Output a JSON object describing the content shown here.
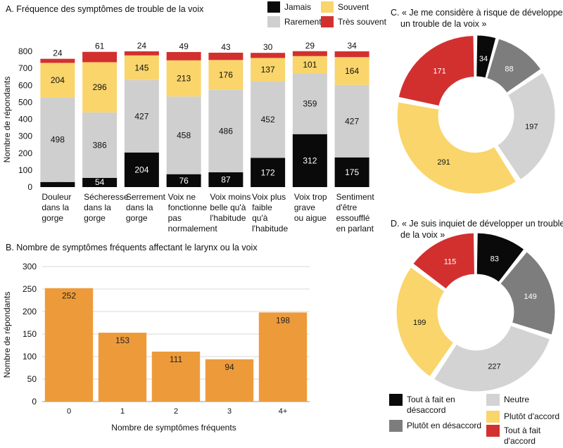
{
  "colors": {
    "jamais": "#0a0a0a",
    "rarement": "#cfcfcf",
    "souvent": "#f9d56b",
    "tres_souvent": "#d2302f",
    "orange": "#ed9b3a",
    "disagree_somewhat": "#7d7d7d",
    "neutral": "#d3d3d3"
  },
  "chart_data": [
    {
      "id": "A",
      "type": "bar",
      "stacked": true,
      "title": "A. Fréquence des symptômes de trouble de la voix",
      "ylabel": "Nombre de répondants",
      "ylim": [
        0,
        800
      ],
      "yticks": [
        0,
        100,
        200,
        300,
        400,
        500,
        600,
        700,
        800
      ],
      "legend_placement": "top-right",
      "categories": [
        "Douleur dans la gorge",
        "Sécheresse dans la gorge",
        "Serrement dans la gorge",
        "Voix ne fonctionne pas normalement",
        "Voix moins belle qu'à l'habitude",
        "Voix plus faible qu'à l'habitude",
        "Voix trop grave ou aigue",
        "Sentiment d'être essoufflé en parlant"
      ],
      "category_lines": [
        [
          "Douleur",
          "dans la",
          "gorge"
        ],
        [
          "Sécheresse",
          "dans la",
          "gorge"
        ],
        [
          "Serrement",
          "dans la",
          "gorge"
        ],
        [
          "Voix ne",
          "fonctionne",
          "pas",
          "normalement"
        ],
        [
          "Voix moins",
          "belle qu'à",
          "l'habitude"
        ],
        [
          "Voix plus",
          "faible",
          "qu'à",
          "l'habitude"
        ],
        [
          "Voix trop",
          "grave",
          "ou aigue"
        ],
        [
          "Sentiment",
          "d'être",
          "essoufflé",
          "en parlant"
        ]
      ],
      "series": [
        {
          "name": "Jamais",
          "values": [
            30,
            54,
            204,
            76,
            87,
            172,
            312,
            175
          ]
        },
        {
          "name": "Rarement",
          "values": [
            498,
            386,
            427,
            458,
            486,
            452,
            359,
            427
          ]
        },
        {
          "name": "Souvent",
          "values": [
            204,
            296,
            145,
            213,
            176,
            137,
            101,
            164
          ]
        },
        {
          "name": "Très souvent",
          "values": [
            24,
            61,
            24,
            49,
            43,
            30,
            29,
            34
          ]
        }
      ]
    },
    {
      "id": "B",
      "type": "bar",
      "title": "B. Nombre de symptômes fréquents affectant le larynx ou la voix",
      "xlabel": "Nombre de symptômes fréquents",
      "ylabel": "Nombre de répondants",
      "ylim": [
        0,
        300
      ],
      "yticks": [
        0,
        50,
        100,
        150,
        200,
        250,
        300
      ],
      "grid": true,
      "categories": [
        "0",
        "1",
        "2",
        "3",
        "4+"
      ],
      "values": [
        252,
        153,
        111,
        94,
        198
      ]
    },
    {
      "id": "C",
      "type": "pie",
      "donut": true,
      "title_lines": [
        "C. « Je me considère à risque de développer",
        "un trouble de la voix »"
      ],
      "labels": [
        "Tout à fait en désaccord",
        "Plutôt en désaccord",
        "Neutre",
        "Plutôt d'accord",
        "Tout à fait d'accord"
      ],
      "values": [
        34,
        88,
        197,
        291,
        171
      ]
    },
    {
      "id": "D",
      "type": "pie",
      "donut": true,
      "title_lines": [
        "D. « Je suis inquiet de développer un trouble",
        "de la voix »"
      ],
      "labels": [
        "Tout à fait en désaccord",
        "Plutôt en désaccord",
        "Neutre",
        "Plutôt d'accord",
        "Tout à fait d'accord"
      ],
      "values": [
        83,
        149,
        227,
        199,
        115
      ]
    }
  ],
  "legend_cd": [
    {
      "lines": [
        "Tout à fait en",
        "désaccord"
      ],
      "color_key": "jamais"
    },
    {
      "lines": [
        "Neutre"
      ],
      "color_key": "neutral"
    },
    {
      "lines": [
        "Plutôt en désaccord"
      ],
      "color_key": "disagree_somewhat"
    },
    {
      "lines": [
        "Plutôt d'accord"
      ],
      "color_key": "souvent"
    },
    {
      "lines": [
        "Tout à fait",
        "d'accord"
      ],
      "color_key": "tres_souvent"
    }
  ]
}
